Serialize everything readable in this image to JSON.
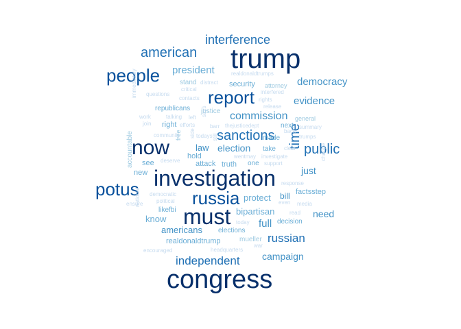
{
  "words": [
    {
      "text": "trump",
      "size": 40,
      "color": "#08306b"
    },
    {
      "text": "congress",
      "size": 38,
      "color": "#08306b"
    },
    {
      "text": "investigation",
      "size": 32,
      "color": "#08306b"
    },
    {
      "text": "must",
      "size": 32,
      "color": "#08306b"
    },
    {
      "text": "now",
      "size": 30,
      "color": "#08306b"
    },
    {
      "text": "people",
      "size": 26,
      "color": "#08519c"
    },
    {
      "text": "report",
      "size": 26,
      "color": "#08519c"
    },
    {
      "text": "potus",
      "size": 26,
      "color": "#08519c"
    },
    {
      "text": "russia",
      "size": 26,
      "color": "#08519c"
    },
    {
      "text": "american",
      "size": 20,
      "color": "#2171b5"
    },
    {
      "text": "interference",
      "size": 18,
      "color": "#2171b5"
    },
    {
      "text": "sanctions",
      "size": 20,
      "color": "#2171b5"
    },
    {
      "text": "public",
      "size": 20,
      "color": "#2171b5"
    },
    {
      "text": "independent",
      "size": 17,
      "color": "#2171b5"
    },
    {
      "text": "russian",
      "size": 17,
      "color": "#2171b5"
    },
    {
      "text": "time",
      "size": 20,
      "color": "#2171b5",
      "rotate": true
    },
    {
      "text": "commission",
      "size": 16,
      "color": "#4292c6"
    },
    {
      "text": "president",
      "size": 15,
      "color": "#6baed6"
    },
    {
      "text": "democracy",
      "size": 15,
      "color": "#4292c6"
    },
    {
      "text": "evidence",
      "size": 15,
      "color": "#4292c6"
    },
    {
      "text": "election",
      "size": 14,
      "color": "#4292c6"
    },
    {
      "text": "campaign",
      "size": 14,
      "color": "#4292c6"
    },
    {
      "text": "full",
      "size": 15,
      "color": "#4292c6"
    },
    {
      "text": "need",
      "size": 14,
      "color": "#4292c6"
    },
    {
      "text": "just",
      "size": 14,
      "color": "#4292c6"
    },
    {
      "text": "bipartisan",
      "size": 13,
      "color": "#6baed6"
    },
    {
      "text": "americans",
      "size": 13,
      "color": "#4292c6"
    },
    {
      "text": "protect",
      "size": 13,
      "color": "#6baed6"
    },
    {
      "text": "law",
      "size": 13,
      "color": "#4292c6"
    },
    {
      "text": "bill",
      "size": 12,
      "color": "#4292c6"
    },
    {
      "text": "security",
      "size": 11,
      "color": "#6baed6"
    },
    {
      "text": "know",
      "size": 13,
      "color": "#6baed6"
    },
    {
      "text": "realdonaldtrump",
      "size": 11,
      "color": "#6baed6"
    },
    {
      "text": "factsstep",
      "size": 11,
      "color": "#6baed6"
    },
    {
      "text": "right",
      "size": 11,
      "color": "#6baed6"
    },
    {
      "text": "republicans",
      "size": 10,
      "color": "#6baed6"
    },
    {
      "text": "attack",
      "size": 11,
      "color": "#6baed6"
    },
    {
      "text": "truth",
      "size": 11,
      "color": "#6baed6"
    },
    {
      "text": "see",
      "size": 11,
      "color": "#6baed6"
    },
    {
      "text": "new",
      "size": 11,
      "color": "#6baed6"
    },
    {
      "text": "hold",
      "size": 11,
      "color": "#6baed6"
    },
    {
      "text": "take",
      "size": 10,
      "color": "#6baed6"
    },
    {
      "text": "made",
      "size": 10,
      "color": "#6baed6"
    },
    {
      "text": "next",
      "size": 10,
      "color": "#6baed6"
    },
    {
      "text": "one",
      "size": 10,
      "color": "#6baed6"
    },
    {
      "text": "mueller",
      "size": 10,
      "color": "#9ecae1"
    },
    {
      "text": "decision",
      "size": 10,
      "color": "#6baed6"
    },
    {
      "text": "elections",
      "size": 10,
      "color": "#6baed6"
    },
    {
      "text": "likefbi",
      "size": 10,
      "color": "#6baed6"
    },
    {
      "text": "justice",
      "size": 10,
      "color": "#9ecae1"
    },
    {
      "text": "attorney",
      "size": 9,
      "color": "#9ecae1"
    },
    {
      "text": "stand",
      "size": 10,
      "color": "#9ecae1"
    },
    {
      "text": "general",
      "size": 9,
      "color": "#9ecae1"
    },
    {
      "text": "accountable",
      "size": 10,
      "color": "#9ecae1",
      "rotate": true
    },
    {
      "text": "realdonaldtrumps",
      "size": 8,
      "color": "#c6dbef"
    },
    {
      "text": "distract",
      "size": 8,
      "color": "#c6dbef"
    },
    {
      "text": "critical",
      "size": 8,
      "color": "#c6dbef"
    },
    {
      "text": "interfered",
      "size": 8,
      "color": "#c6dbef"
    },
    {
      "text": "questions",
      "size": 8,
      "color": "#c6dbef"
    },
    {
      "text": "contacts",
      "size": 8,
      "color": "#c6dbef"
    },
    {
      "text": "rights",
      "size": 8,
      "color": "#c6dbef"
    },
    {
      "text": "release",
      "size": 8,
      "color": "#c6dbef"
    },
    {
      "text": "work",
      "size": 8,
      "color": "#c6dbef"
    },
    {
      "text": "talking",
      "size": 8,
      "color": "#c6dbef"
    },
    {
      "text": "left",
      "size": 8,
      "color": "#c6dbef"
    },
    {
      "text": "join",
      "size": 8,
      "color": "#c6dbef"
    },
    {
      "text": "efforts",
      "size": 8,
      "color": "#c6dbef"
    },
    {
      "text": "barr",
      "size": 8,
      "color": "#c6dbef"
    },
    {
      "text": "thejusticedept",
      "size": 8,
      "color": "#c6dbef"
    },
    {
      "text": "summary",
      "size": 8,
      "color": "#c6dbef"
    },
    {
      "text": "trumps",
      "size": 8,
      "color": "#c6dbef"
    },
    {
      "text": "back",
      "size": 8,
      "color": "#c6dbef"
    },
    {
      "text": "community",
      "size": 8,
      "color": "#c6dbef"
    },
    {
      "text": "todays",
      "size": 8,
      "color": "#c6dbef"
    },
    {
      "text": "wentmay",
      "size": 8,
      "color": "#c6dbef"
    },
    {
      "text": "investigate",
      "size": 8,
      "color": "#c6dbef"
    },
    {
      "text": "clear",
      "size": 8,
      "color": "#c6dbef"
    },
    {
      "text": "deserve",
      "size": 8,
      "color": "#c6dbef"
    },
    {
      "text": "support",
      "size": 8,
      "color": "#c6dbef"
    },
    {
      "text": "response",
      "size": 8,
      "color": "#c6dbef"
    },
    {
      "text": "democratic",
      "size": 8,
      "color": "#c6dbef"
    },
    {
      "text": "political",
      "size": 8,
      "color": "#c6dbef"
    },
    {
      "text": "ensure",
      "size": 8,
      "color": "#c6dbef"
    },
    {
      "text": "even",
      "size": 8,
      "color": "#c6dbef"
    },
    {
      "text": "media",
      "size": 8,
      "color": "#c6dbef"
    },
    {
      "text": "read",
      "size": 8,
      "color": "#c6dbef"
    },
    {
      "text": "today",
      "size": 8,
      "color": "#c6dbef"
    },
    {
      "text": "war",
      "size": 8,
      "color": "#c6dbef"
    },
    {
      "text": "headquarters",
      "size": 8,
      "color": "#c6dbef"
    },
    {
      "text": "encouraged",
      "size": 8,
      "color": "#c6dbef"
    },
    {
      "text": "immediately",
      "size": 8,
      "color": "#c6dbef",
      "rotate": true
    },
    {
      "text": "national",
      "size": 8,
      "color": "#c6dbef",
      "rotate": true
    },
    {
      "text": "free",
      "size": 9,
      "color": "#9ecae1",
      "rotate": true
    },
    {
      "text": "says",
      "size": 8,
      "color": "#c6dbef",
      "rotate": true
    },
    {
      "text": "change",
      "size": 8,
      "color": "#c6dbef",
      "rotate": true
    },
    {
      "text": "side",
      "size": 8,
      "color": "#c6dbef",
      "rotate": true
    },
    {
      "text": "still",
      "size": 8,
      "color": "#c6dbef",
      "rotate": true
    }
  ]
}
